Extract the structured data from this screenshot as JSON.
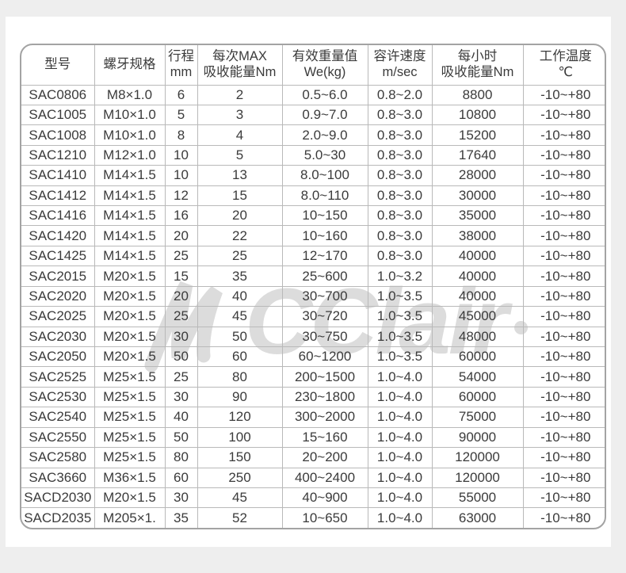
{
  "watermark": {
    "text": "CClair",
    "color": "#dcdcdc"
  },
  "table": {
    "headers": [
      {
        "line1": "型号",
        "line2": ""
      },
      {
        "line1": "螺牙规格",
        "line2": ""
      },
      {
        "line1": "行程",
        "line2": "mm"
      },
      {
        "line1": "每次MAX",
        "line2": "吸收能量Nm"
      },
      {
        "line1": "有效重量值",
        "line2": "We(kg)"
      },
      {
        "line1": "容许速度",
        "line2": "m/sec"
      },
      {
        "line1": "每小时",
        "line2": "吸收能量Nm"
      },
      {
        "line1": "工作温度",
        "line2": "℃"
      }
    ],
    "column_keys": [
      "model",
      "thread",
      "stroke",
      "energy-max",
      "weight",
      "speed",
      "energy-hour",
      "temp"
    ],
    "rows": [
      [
        "SAC0806",
        "M8×1.0",
        "6",
        "2",
        "0.5~6.0",
        "0.8~2.0",
        "8800",
        "-10~+80"
      ],
      [
        "SAC1005",
        "M10×1.0",
        "5",
        "3",
        "0.9~7.0",
        "0.8~3.0",
        "10800",
        "-10~+80"
      ],
      [
        "SAC1008",
        "M10×1.0",
        "8",
        "4",
        "2.0~9.0",
        "0.8~3.0",
        "15200",
        "-10~+80"
      ],
      [
        "SAC1210",
        "M12×1.0",
        "10",
        "5",
        "5.0~30",
        "0.8~3.0",
        "17640",
        "-10~+80"
      ],
      [
        "SAC1410",
        "M14×1.5",
        "10",
        "13",
        "8.0~100",
        "0.8~3.0",
        "28000",
        "-10~+80"
      ],
      [
        "SAC1412",
        "M14×1.5",
        "12",
        "15",
        "8.0~110",
        "0.8~3.0",
        "30000",
        "-10~+80"
      ],
      [
        "SAC1416",
        "M14×1.5",
        "16",
        "20",
        "10~150",
        "0.8~3.0",
        "35000",
        "-10~+80"
      ],
      [
        "SAC1420",
        "M14×1.5",
        "20",
        "22",
        "10~160",
        "0.8~3.0",
        "38000",
        "-10~+80"
      ],
      [
        "SAC1425",
        "M14×1.5",
        "25",
        "25",
        "12~170",
        "0.8~3.0",
        "40000",
        "-10~+80"
      ],
      [
        "SAC2015",
        "M20×1.5",
        "15",
        "35",
        "25~600",
        "1.0~3.2",
        "40000",
        "-10~+80"
      ],
      [
        "SAC2020",
        "M20×1.5",
        "20",
        "40",
        "30~700",
        "1.0~3.5",
        "40000",
        "-10~+80"
      ],
      [
        "SAC2025",
        "M20×1.5",
        "25",
        "45",
        "30~720",
        "1.0~3.5",
        "45000",
        "-10~+80"
      ],
      [
        "SAC2030",
        "M20×1.5",
        "30",
        "50",
        "30~750",
        "1.0~3.5",
        "48000",
        "-10~+80"
      ],
      [
        "SAC2050",
        "M20×1.5",
        "50",
        "60",
        "60~1200",
        "1.0~3.5",
        "60000",
        "-10~+80"
      ],
      [
        "SAC2525",
        "M25×1.5",
        "25",
        "80",
        "200~1500",
        "1.0~4.0",
        "54000",
        "-10~+80"
      ],
      [
        "SAC2530",
        "M25×1.5",
        "30",
        "90",
        "230~1800",
        "1.0~4.0",
        "60000",
        "-10~+80"
      ],
      [
        "SAC2540",
        "M25×1.5",
        "40",
        "120",
        "300~2000",
        "1.0~4.0",
        "75000",
        "-10~+80"
      ],
      [
        "SAC2550",
        "M25×1.5",
        "50",
        "100",
        "15~160",
        "1.0~4.0",
        "90000",
        "-10~+80"
      ],
      [
        "SAC2580",
        "M25×1.5",
        "80",
        "150",
        "20~200",
        "1.0~4.0",
        "120000",
        "-10~+80"
      ],
      [
        "SAC3660",
        "M36×1.5",
        "60",
        "250",
        "400~2400",
        "1.0~4.0",
        "120000",
        "-10~+80"
      ],
      [
        "SACD2030",
        "M20×1.5",
        "30",
        "45",
        "40~900",
        "1.0~4.0",
        "55000",
        "-10~+80"
      ],
      [
        "SACD2035",
        "M205×1.",
        "35",
        "52",
        "10~650",
        "1.0~4.0",
        "63000",
        "-10~+80"
      ]
    ]
  }
}
